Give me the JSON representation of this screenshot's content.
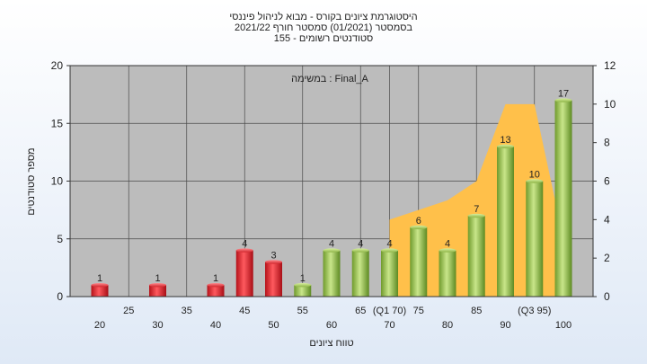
{
  "chart_data": {
    "type": "bar",
    "title_lines": [
      "היסטוגרמת ציונים בקורס - מבוא לניהול פיננסי",
      "בסמסטר  (01/2021)  סמסטר חורף 2021/22",
      "סטודנטים רשומים - 155"
    ],
    "annotation": "במשימה : Final_A",
    "xlabel": "טווח ציונים",
    "ylabel": "מספר סטודנטים",
    "ylim": [
      0,
      20
    ],
    "y_ticks": [
      "0",
      "5",
      "10",
      "15",
      "20"
    ],
    "y2lim": [
      0,
      12
    ],
    "y2_ticks": [
      "0",
      "2",
      "4",
      "6",
      "8",
      "10",
      "12"
    ],
    "x_labels_top": [
      "25",
      "35",
      "45",
      "55",
      "65",
      "(Q1 70)",
      "75",
      "85",
      "(Q3 95)"
    ],
    "x_labels_bottom": [
      "20",
      "30",
      "40",
      "50",
      "60",
      "70",
      "80",
      "90",
      "100"
    ],
    "bars": [
      {
        "x": 20,
        "value": 1,
        "label": "1",
        "color": "red"
      },
      {
        "x": 30,
        "value": 1,
        "label": "1",
        "color": "red"
      },
      {
        "x": 40,
        "value": 1,
        "label": "1",
        "color": "red"
      },
      {
        "x": 45,
        "value": 4,
        "label": "4",
        "color": "red"
      },
      {
        "x": 50,
        "value": 3,
        "label": "3",
        "color": "red"
      },
      {
        "x": 55,
        "value": 1,
        "label": "1",
        "color": "green"
      },
      {
        "x": 60,
        "value": 4,
        "label": "4",
        "color": "green"
      },
      {
        "x": 65,
        "value": 4,
        "label": "4",
        "color": "green"
      },
      {
        "x": 70,
        "value": 4,
        "label": "4",
        "color": "green"
      },
      {
        "x": 75,
        "value": 6,
        "label": "6",
        "color": "green"
      },
      {
        "x": 80,
        "value": 4,
        "label": "4",
        "color": "green"
      },
      {
        "x": 85,
        "value": 7,
        "label": "7",
        "color": "green"
      },
      {
        "x": 90,
        "value": 13,
        "label": "13",
        "color": "green"
      },
      {
        "x": 95,
        "value": 10,
        "label": "10",
        "color": "green"
      },
      {
        "x": 100,
        "value": 17,
        "label": "17",
        "color": "green"
      }
    ],
    "area_series": {
      "points": [
        [
          70,
          4
        ],
        [
          80,
          5
        ],
        [
          85,
          6
        ],
        [
          90,
          10
        ],
        [
          95,
          10
        ],
        [
          100,
          3
        ]
      ]
    },
    "colors": {
      "plot_bg": "#bcbcbc",
      "grid": "#4a4a4a",
      "area": "#ffc04a",
      "red_bar": "#e8242c",
      "green_bar": "#9ac249"
    },
    "grid": true
  }
}
